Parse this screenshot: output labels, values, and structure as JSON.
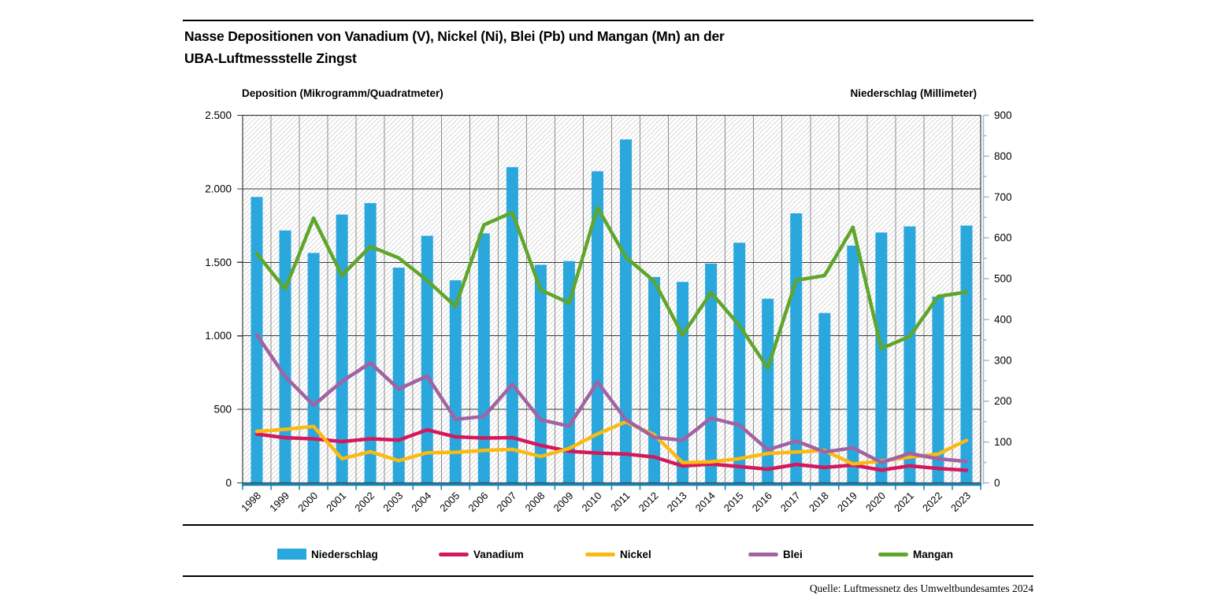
{
  "title": "Nasse Depositionen von Vanadium (V), Nickel (Ni), Blei (Pb) und Mangan (Mn) an der\nUBA-Luftmessstelle Zingst",
  "source": "Quelle: Luftmessnetz des Umweltbundesamtes 2024",
  "chart_data": {
    "type": "bar",
    "title": "Nasse Depositionen von Vanadium (V), Nickel (Ni), Blei (Pb) und Mangan (Mn) an der UBA-Luftmessstelle Zingst",
    "categories": [
      "1998",
      "1999",
      "2000",
      "2001",
      "2002",
      "2003",
      "2004",
      "2005",
      "2006",
      "2007",
      "2008",
      "2009",
      "2010",
      "2011",
      "2012",
      "2013",
      "2014",
      "2015",
      "2016",
      "2017",
      "2018",
      "2019",
      "2020",
      "2021",
      "2022",
      "2023"
    ],
    "series": [
      {
        "name": "Niederschlag",
        "type": "bar",
        "axis": "right",
        "color": "#2AA7DC",
        "values": [
          700,
          618,
          563,
          657,
          685,
          527,
          605,
          496,
          611,
          773,
          534,
          543,
          763,
          841,
          504,
          492,
          537,
          588,
          451,
          660,
          416,
          581,
          613,
          628,
          456,
          630
        ]
      },
      {
        "name": "Vanadium",
        "type": "line",
        "axis": "left",
        "color": "#D4185D",
        "values": [
          332,
          307,
          300,
          281,
          300,
          291,
          361,
          313,
          305,
          308,
          255,
          215,
          203,
          196,
          176,
          115,
          128,
          111,
          93,
          125,
          105,
          121,
          87,
          116,
          98,
          86
        ]
      },
      {
        "name": "Nickel",
        "type": "line",
        "axis": "left",
        "color": "#FBBA12",
        "values": [
          350,
          364,
          384,
          164,
          212,
          151,
          205,
          208,
          221,
          228,
          180,
          234,
          333,
          415,
          327,
          138,
          143,
          165,
          200,
          210,
          220,
          129,
          148,
          175,
          196,
          289
        ]
      },
      {
        "name": "Blei",
        "type": "line",
        "axis": "left",
        "color": "#A263A3",
        "values": [
          1007,
          723,
          528,
          690,
          816,
          638,
          727,
          432,
          452,
          670,
          429,
          386,
          687,
          430,
          310,
          290,
          441,
          393,
          225,
          285,
          210,
          238,
          139,
          200,
          164,
          146
        ]
      },
      {
        "name": "Mangan",
        "type": "line",
        "axis": "left",
        "color": "#5FA62C",
        "values": [
          1560,
          1318,
          1800,
          1410,
          1608,
          1530,
          1377,
          1200,
          1755,
          1840,
          1313,
          1223,
          1872,
          1535,
          1371,
          1005,
          1295,
          1070,
          780,
          1378,
          1410,
          1738,
          914,
          996,
          1268,
          1298
        ]
      }
    ],
    "left_axis": {
      "title": "Deposition (Mikrogramm/Quadratmeter)",
      "min": 0,
      "max": 2500,
      "tick_values": [
        0,
        500,
        1000,
        1500,
        2000,
        2500
      ],
      "tick_labels": [
        "0",
        "500",
        "1.000",
        "1.500",
        "2.000",
        "2.500"
      ]
    },
    "right_axis": {
      "title": "Niederschlag (Millimeter)",
      "min": 0,
      "max": 900,
      "tick_values": [
        0,
        100,
        200,
        300,
        400,
        500,
        600,
        700,
        800,
        900
      ],
      "tick_labels": [
        "0",
        "100",
        "200",
        "300",
        "400",
        "500",
        "600",
        "700",
        "800",
        "900"
      ],
      "minor_tick_step": 50
    },
    "grid": "on",
    "legend_position": "bottom",
    "colors": {
      "vertical_grid": "#8C8C8C",
      "horizontal_grid": "#3B3B3B",
      "plot_border": "#3B3B3B",
      "hatch": "#DADADA",
      "x_axis": "#1A81B4",
      "right_axis_line": "#9FB9CB",
      "text": "#000000"
    }
  }
}
